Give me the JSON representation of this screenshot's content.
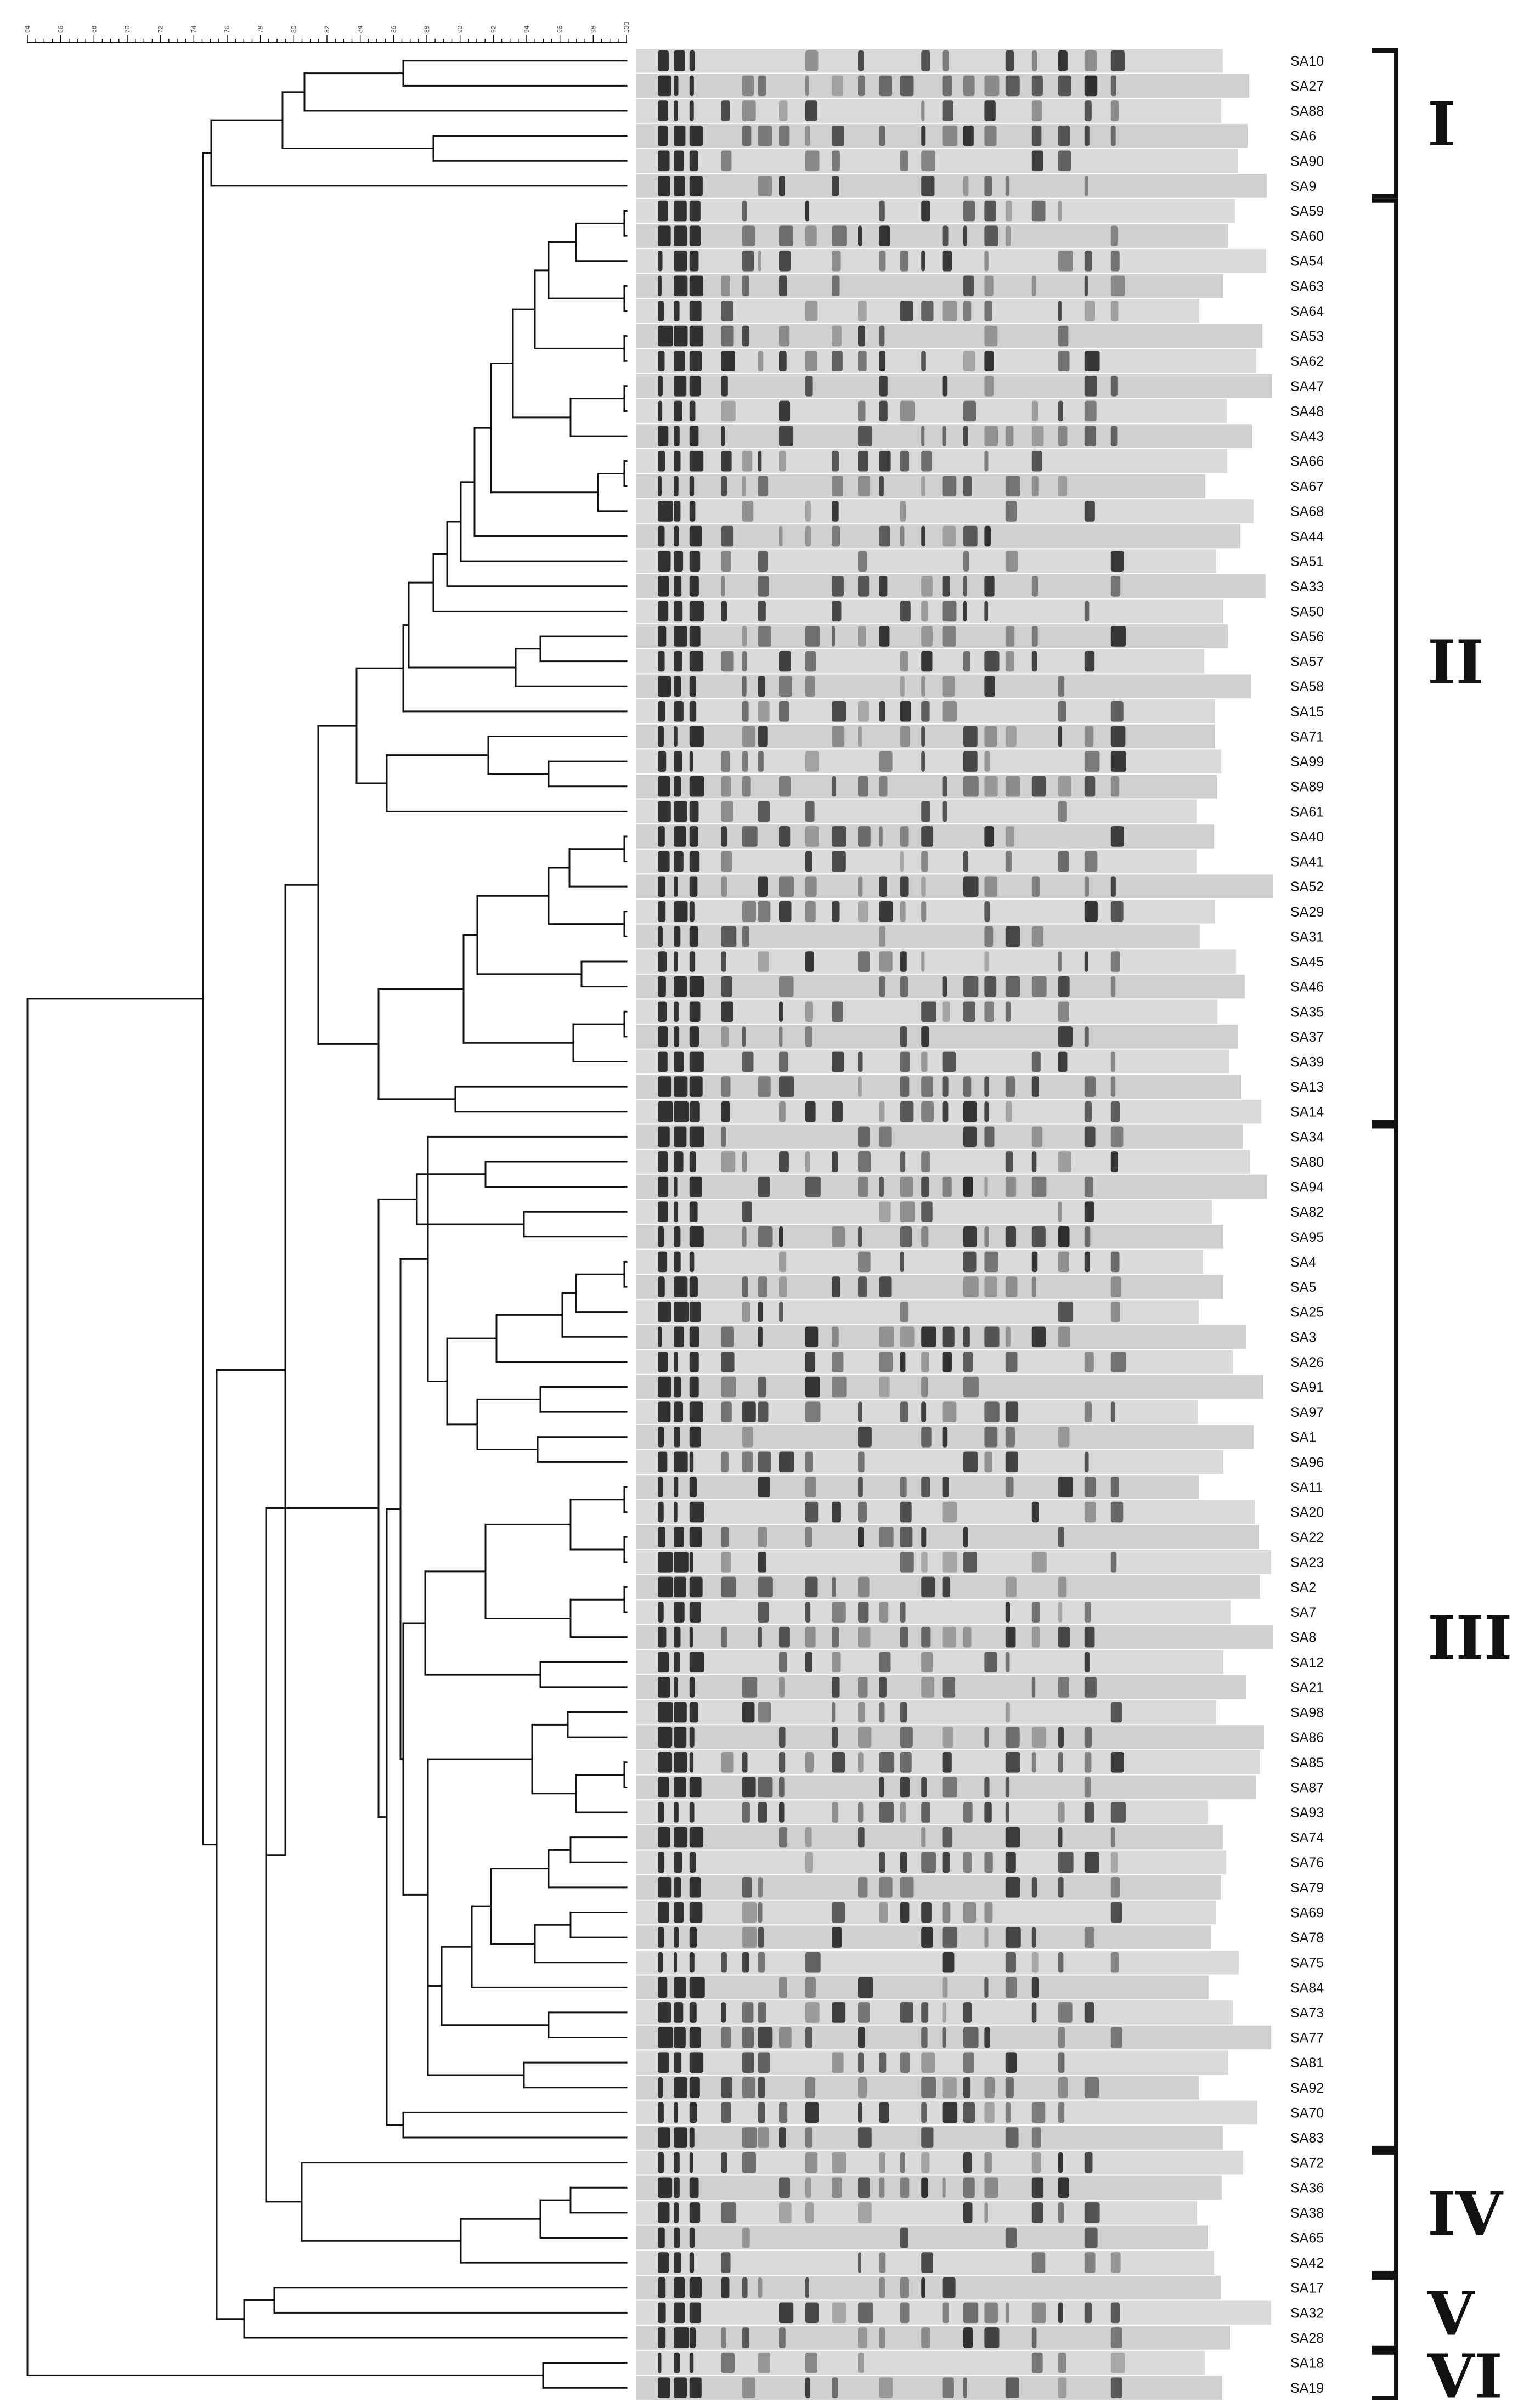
{
  "scale": {
    "ticks": [
      "64",
      "66",
      "68",
      "70",
      "72",
      "74",
      "76",
      "78",
      "80",
      "82",
      "84",
      "86",
      "88",
      "90",
      "92",
      "94",
      "96",
      "98",
      "100"
    ]
  },
  "lanes": [
    "SA10",
    "SA27",
    "SA88",
    "SA6",
    "SA90",
    "SA9",
    "SA59",
    "SA60",
    "SA54",
    "SA63",
    "SA64",
    "SA53",
    "SA62",
    "SA47",
    "SA48",
    "SA43",
    "SA66",
    "SA67",
    "SA68",
    "SA44",
    "SA51",
    "SA33",
    "SA50",
    "SA56",
    "SA57",
    "SA58",
    "SA15",
    "SA71",
    "SA99",
    "SA89",
    "SA61",
    "SA40",
    "SA41",
    "SA52",
    "SA29",
    "SA31",
    "SA45",
    "SA46",
    "SA35",
    "SA37",
    "SA39",
    "SA13",
    "SA14",
    "SA34",
    "SA80",
    "SA94",
    "SA82",
    "SA95",
    "SA4",
    "SA5",
    "SA25",
    "SA3",
    "SA26",
    "SA91",
    "SA97",
    "SA1",
    "SA96",
    "SA11",
    "SA20",
    "SA22",
    "SA23",
    "SA2",
    "SA7",
    "SA8",
    "SA12",
    "SA21",
    "SA98",
    "SA86",
    "SA85",
    "SA87",
    "SA93",
    "SA74",
    "SA76",
    "SA79",
    "SA69",
    "SA78",
    "SA75",
    "SA84",
    "SA73",
    "SA77",
    "SA81",
    "SA92",
    "SA70",
    "SA83",
    "SA72",
    "SA36",
    "SA38",
    "SA65",
    "SA42",
    "SA17",
    "SA32",
    "SA28",
    "SA18",
    "SA19"
  ],
  "clusters": [
    {
      "label": "I",
      "first": 0,
      "last": 5
    },
    {
      "label": "II",
      "first": 6,
      "last": 42
    },
    {
      "label": "III",
      "first": 43,
      "last": 83
    },
    {
      "label": "IV",
      "first": 84,
      "last": 88
    },
    {
      "label": "V",
      "first": 89,
      "last": 91
    },
    {
      "label": "VI",
      "first": 92,
      "last": 93
    }
  ],
  "colors": {
    "line": "#111111",
    "gel_bg": "#d6d6d6",
    "band": "#141414"
  }
}
